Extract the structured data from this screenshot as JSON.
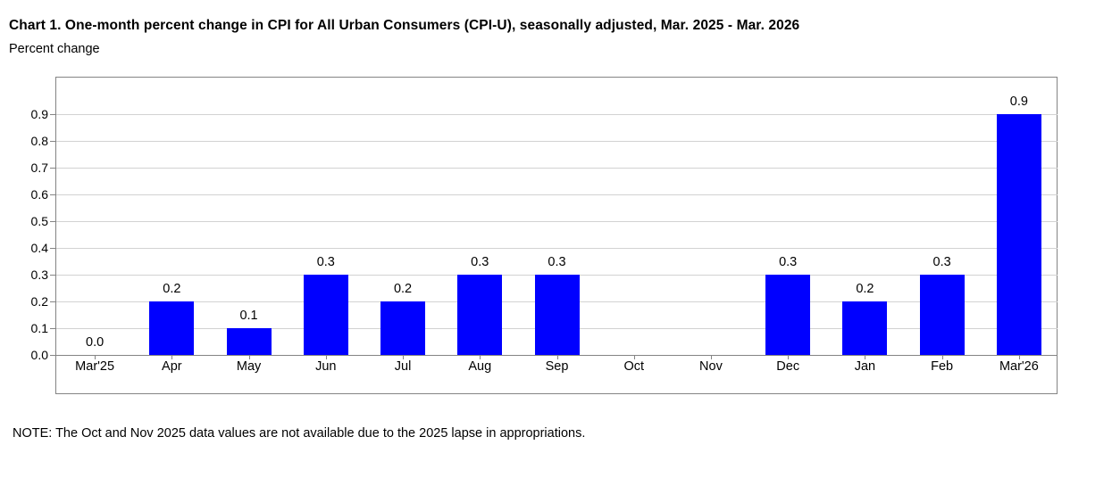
{
  "chart_data": {
    "type": "bar",
    "title": "Chart 1. One-month percent change in CPI for All Urban Consumers (CPI-U), seasonally adjusted, Mar. 2025 - Mar. 2026",
    "subtitle": "Percent change",
    "categories": [
      "Mar'25",
      "Apr",
      "May",
      "Jun",
      "Jul",
      "Aug",
      "Sep",
      "Oct",
      "Nov",
      "Dec",
      "Jan",
      "Feb",
      "Mar'26"
    ],
    "values": [
      0.0,
      0.2,
      0.1,
      0.3,
      0.2,
      0.3,
      0.3,
      null,
      null,
      0.3,
      0.2,
      0.3,
      0.9
    ],
    "value_labels": [
      "0.0",
      "0.2",
      "0.1",
      "0.3",
      "0.2",
      "0.3",
      "0.3",
      "",
      "",
      "0.3",
      "0.2",
      "0.3",
      "0.9"
    ],
    "y_tick_labels": [
      "0.0",
      "0.1",
      "0.2",
      "0.3",
      "0.4",
      "0.5",
      "0.6",
      "0.7",
      "0.8",
      "0.9"
    ],
    "ylim": [
      0.0,
      1.04
    ],
    "xlabel": "",
    "ylabel": "Percent change",
    "grid": true,
    "legend_position": "none",
    "bar_color": "#0000ff",
    "gridline_color": "#d2d2d2",
    "border_color": "#848484",
    "note": "NOTE: The Oct and Nov 2025 data values are not available due to the 2025 lapse in appropriations."
  }
}
